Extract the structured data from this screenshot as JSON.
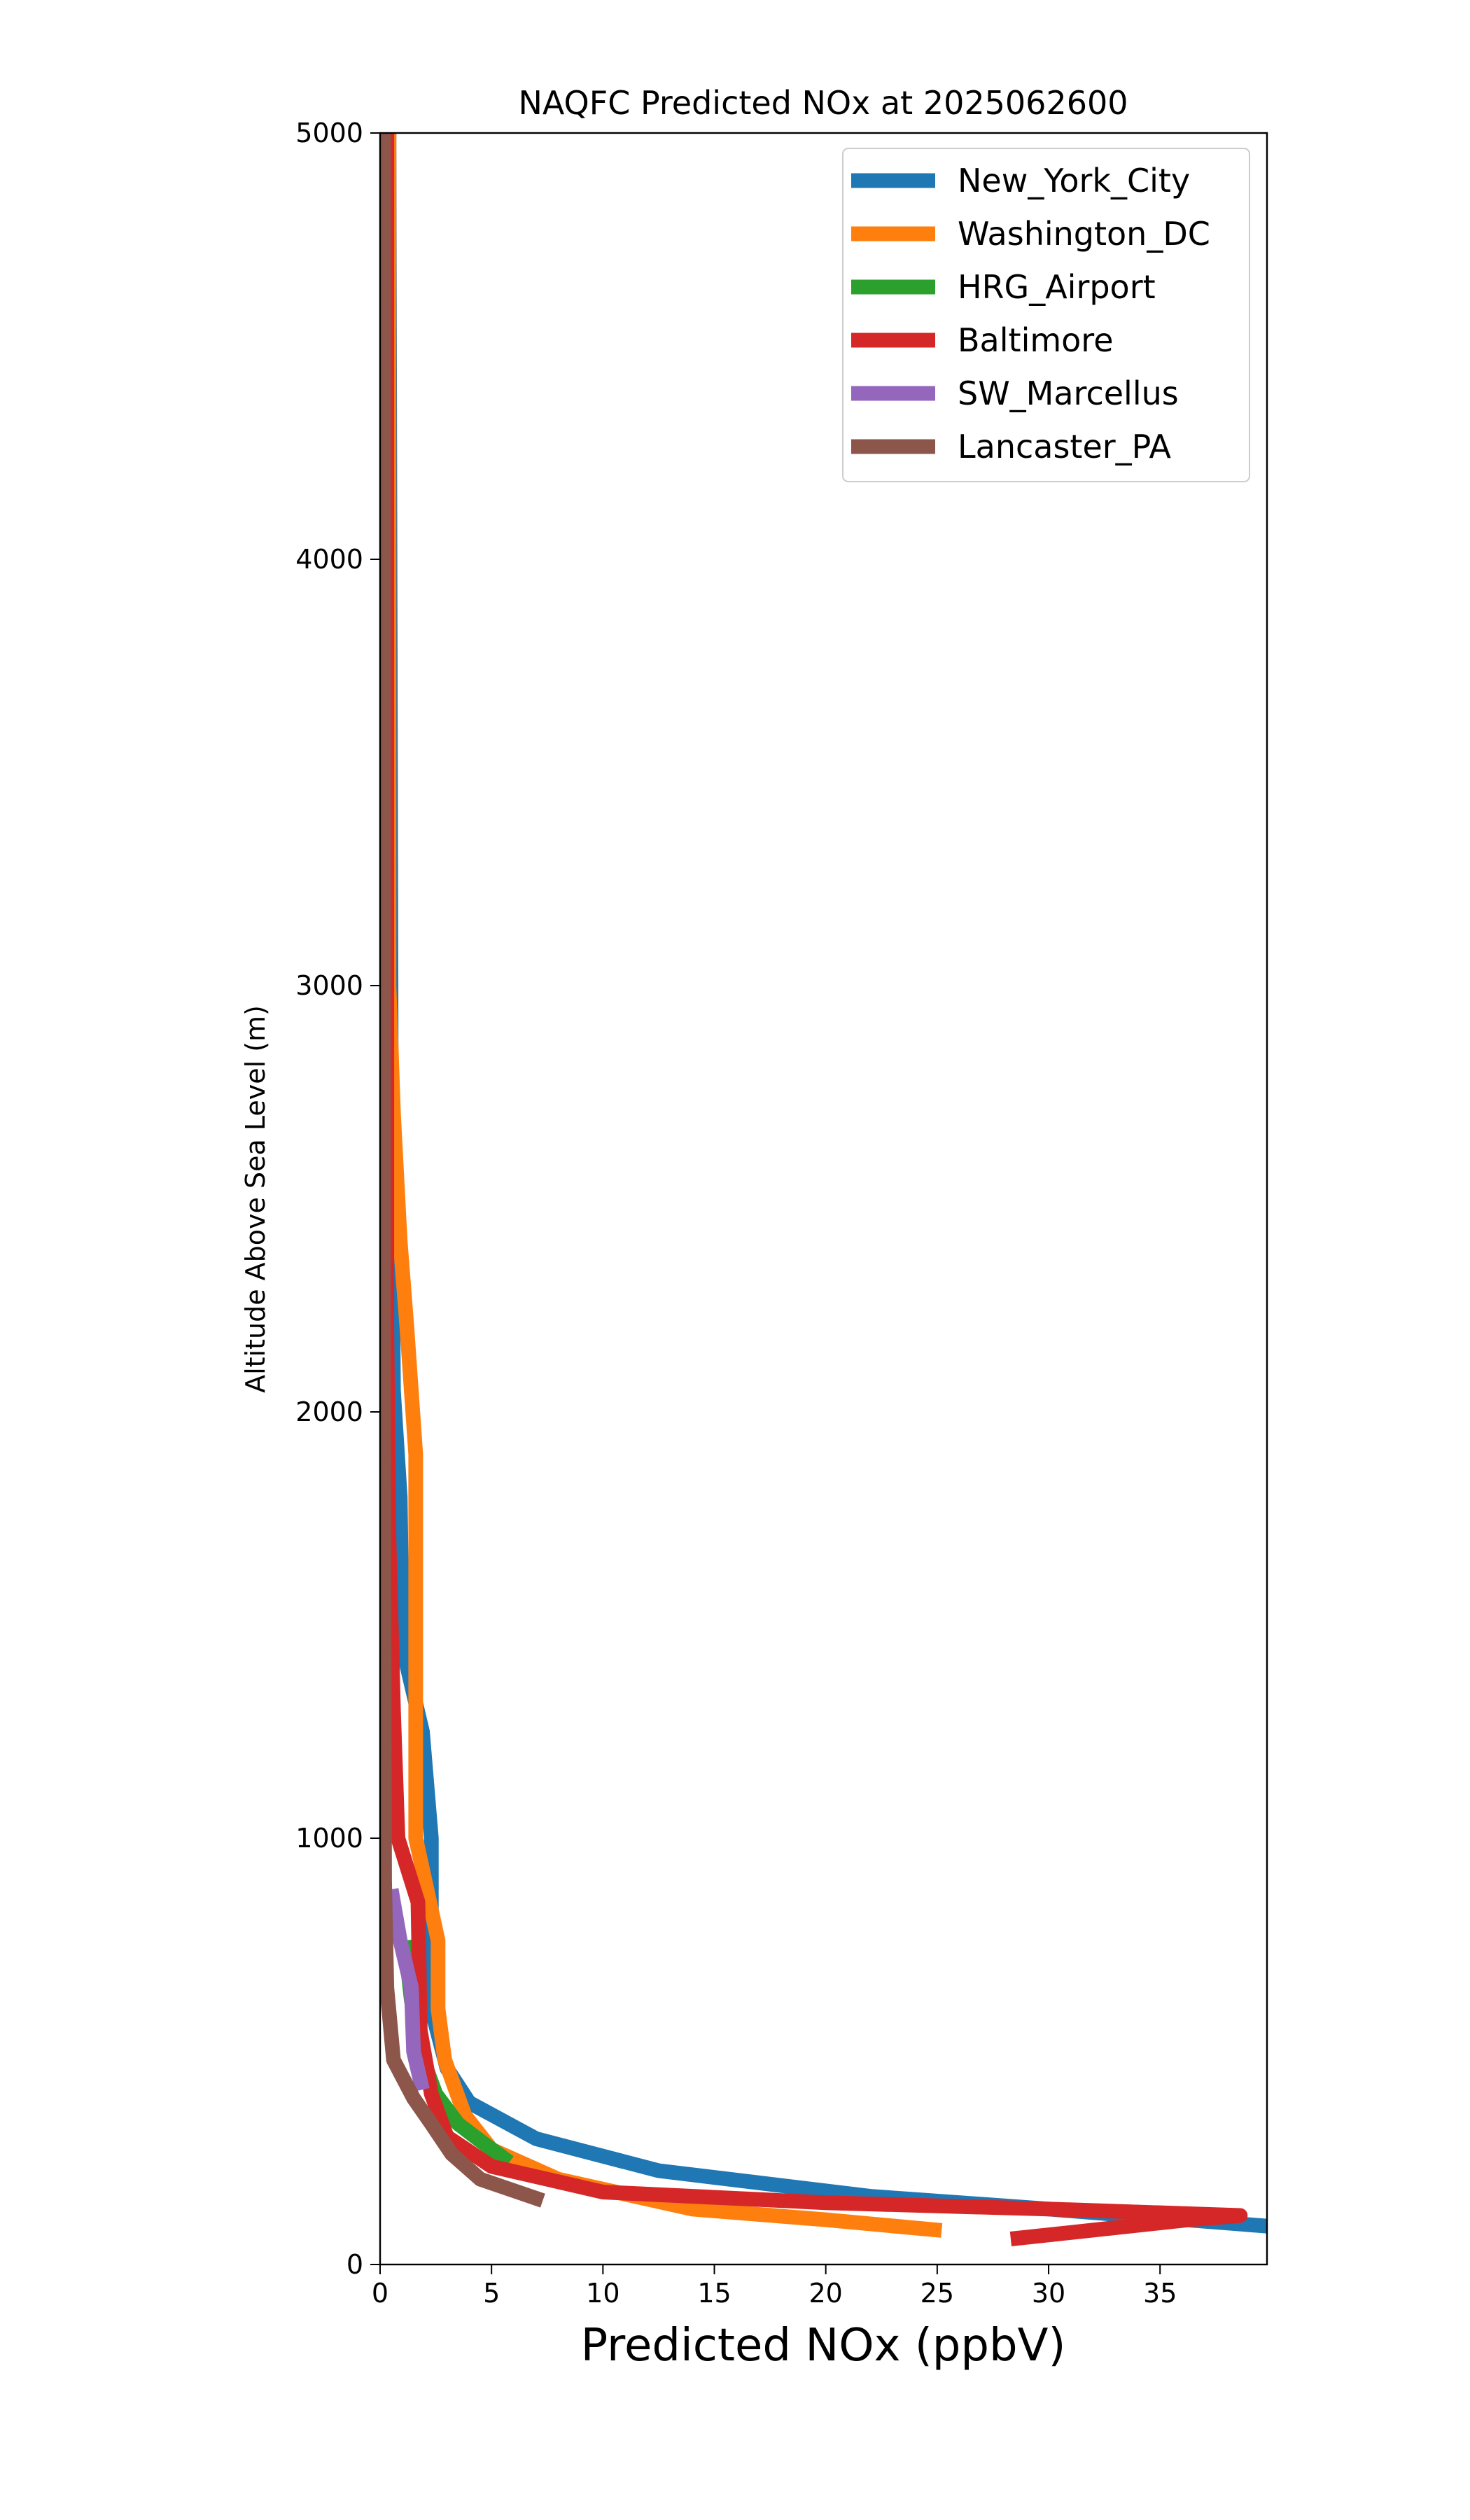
{
  "chart_data": {
    "type": "line",
    "title": "NAQFC Predicted NOx at 2025062600",
    "xlabel": "Predicted NOx (ppbV)",
    "ylabel": "Altitude Above Sea Level (m)",
    "xlim": [
      0,
      39.8
    ],
    "ylim": [
      0,
      5000
    ],
    "xticks": [
      0,
      5,
      10,
      15,
      20,
      25,
      30,
      35
    ],
    "yticks": [
      0,
      1000,
      2000,
      3000,
      4000,
      5000
    ],
    "grid": false,
    "legend_position": "top-right",
    "series": [
      {
        "name": "New_York_City",
        "color": "#1f77b4",
        "points": [
          [
            39.8,
            90
          ],
          [
            30,
            130
          ],
          [
            22,
            160
          ],
          [
            12.5,
            220
          ],
          [
            7,
            295
          ],
          [
            4,
            380
          ],
          [
            3,
            460
          ],
          [
            2.3,
            600
          ],
          [
            2.3,
            1000
          ],
          [
            1.9,
            1250
          ],
          [
            1.0,
            1450
          ],
          [
            0.9,
            1800
          ],
          [
            0.6,
            2050
          ],
          [
            0.5,
            2750
          ],
          [
            0.4,
            5000
          ]
        ]
      },
      {
        "name": "Washington_DC",
        "color": "#ff7f0e",
        "points": [
          [
            25.2,
            80
          ],
          [
            20,
            105
          ],
          [
            14,
            130
          ],
          [
            8,
            200
          ],
          [
            5,
            270
          ],
          [
            3.8,
            350
          ],
          [
            2.9,
            480
          ],
          [
            2.6,
            600
          ],
          [
            2.6,
            760
          ],
          [
            1.6,
            1000
          ],
          [
            1.6,
            1900
          ],
          [
            1.2,
            2200
          ],
          [
            0.9,
            2400
          ],
          [
            0.6,
            2700
          ],
          [
            0.4,
            3000
          ],
          [
            0.4,
            5000
          ]
        ]
      },
      {
        "name": "HRG_Airport",
        "color": "#2ca02c",
        "points": [
          [
            5.8,
            240
          ],
          [
            4.5,
            290
          ],
          [
            3.5,
            330
          ],
          [
            2.5,
            400
          ],
          [
            1.8,
            500
          ],
          [
            1.4,
            620
          ],
          [
            1.1,
            760
          ]
        ]
      },
      {
        "name": "Baltimore",
        "color": "#d62728",
        "points": [
          [
            28.3,
            60
          ],
          [
            36.3,
            105
          ],
          [
            38.6,
            115
          ],
          [
            30,
            130
          ],
          [
            20,
            145
          ],
          [
            10,
            170
          ],
          [
            5,
            230
          ],
          [
            3,
            300
          ],
          [
            2.3,
            400
          ],
          [
            1.8,
            550
          ],
          [
            1.7,
            850
          ],
          [
            0.8,
            1000
          ],
          [
            0.6,
            1300
          ],
          [
            0.4,
            1700
          ],
          [
            0.3,
            2200
          ],
          [
            0.3,
            5000
          ]
        ]
      },
      {
        "name": "SW_Marcellus",
        "color": "#9467bd",
        "points": [
          [
            1.9,
            410
          ],
          [
            1.5,
            500
          ],
          [
            1.4,
            650
          ],
          [
            0.9,
            760
          ],
          [
            0.5,
            880
          ]
        ]
      },
      {
        "name": "Lancaster_PA",
        "color": "#8c564b",
        "points": [
          [
            7.3,
            150
          ],
          [
            4.5,
            200
          ],
          [
            3.2,
            260
          ],
          [
            2.3,
            330
          ],
          [
            1.5,
            390
          ],
          [
            0.6,
            480
          ],
          [
            0.3,
            650
          ],
          [
            0.2,
            900
          ],
          [
            0.15,
            2000
          ],
          [
            0.15,
            5000
          ]
        ]
      }
    ]
  }
}
